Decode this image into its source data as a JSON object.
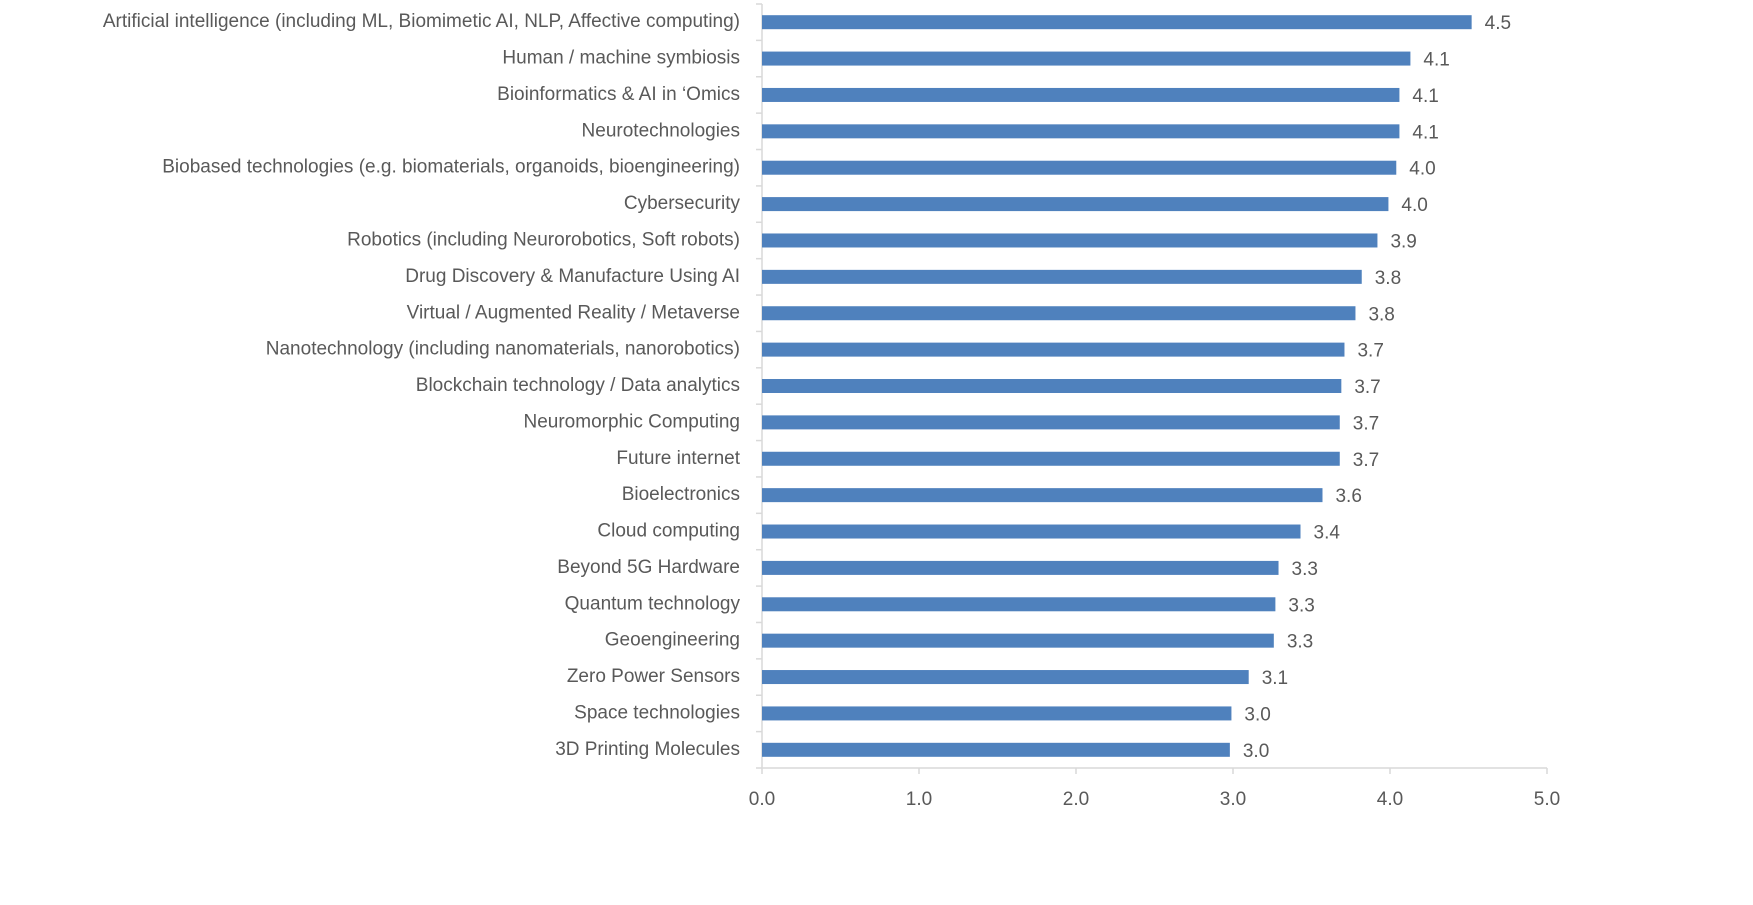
{
  "chart_data": {
    "type": "bar",
    "orientation": "horizontal",
    "categories": [
      "Artificial intelligence (including ML, Biomimetic AI, NLP, Affective computing)",
      "Human / machine symbiosis",
      "Bioinformatics & AI in ‘Omics",
      "Neurotechnologies",
      "Biobased technologies (e.g. biomaterials, organoids, bioengineering)",
      "Cybersecurity",
      "Robotics (including Neurorobotics, Soft robots)",
      "Drug Discovery & Manufacture Using AI",
      "Virtual / Augmented Reality / Metaverse",
      "Nanotechnology (including nanomaterials, nanorobotics)",
      "Blockchain technology / Data analytics",
      "Neuromorphic Computing",
      "Future internet",
      "Bioelectronics",
      "Cloud computing",
      "Beyond 5G Hardware",
      "Quantum technology",
      "Geoengineering",
      "Zero Power Sensors",
      "Space technologies",
      "3D Printing Molecules"
    ],
    "values": [
      4.52,
      4.13,
      4.06,
      4.06,
      4.04,
      3.99,
      3.92,
      3.82,
      3.78,
      3.71,
      3.69,
      3.68,
      3.68,
      3.57,
      3.43,
      3.29,
      3.27,
      3.26,
      3.1,
      2.99,
      2.98
    ],
    "value_labels": [
      "4.5",
      "4.1",
      "4.1",
      "4.1",
      "4.0",
      "4.0",
      "3.9",
      "3.8",
      "3.8",
      "3.7",
      "3.7",
      "3.7",
      "3.7",
      "3.6",
      "3.4",
      "3.3",
      "3.3",
      "3.3",
      "3.1",
      "3.0",
      "3.0"
    ],
    "color": "#4f81bd",
    "xlim": [
      0,
      5
    ],
    "xticks": [
      {
        "value": 0,
        "label": "0.0"
      },
      {
        "value": 1,
        "label": "1.0"
      },
      {
        "value": 2,
        "label": "2.0"
      },
      {
        "value": 3,
        "label": "3.0"
      },
      {
        "value": 4,
        "label": "4.0"
      },
      {
        "value": 5,
        "label": "5.0"
      }
    ],
    "grid": false
  }
}
